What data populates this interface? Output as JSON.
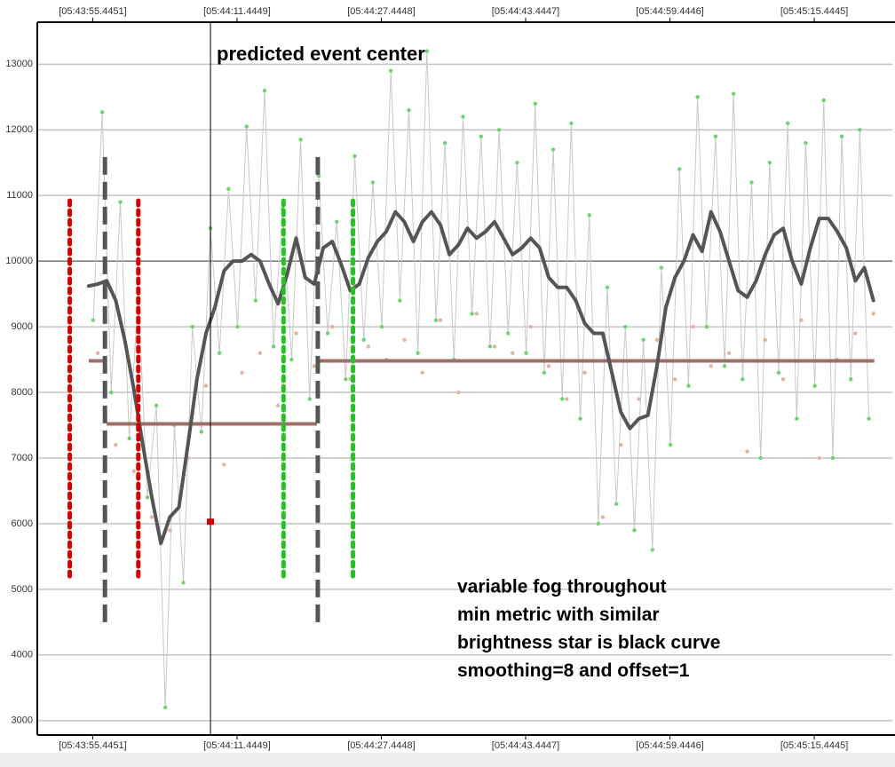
{
  "chart_data": {
    "type": "line",
    "xlim": [
      49.3,
      144.1
    ],
    "ylim": [
      2780,
      13640
    ],
    "yticks": [
      3000,
      4000,
      5000,
      6000,
      7000,
      8000,
      9000,
      10000,
      11000,
      12000,
      13000
    ],
    "xticks": [
      {
        "value": 55.4451,
        "label": "[05:43:55.4451]"
      },
      {
        "value": 71.4449,
        "label": "[05:44:11.4449]"
      },
      {
        "value": 87.4448,
        "label": "[05:44:27.4448]"
      },
      {
        "value": 103.4447,
        "label": "[05:44:43.4447]"
      },
      {
        "value": 119.4446,
        "label": "[05:44:59.4446]"
      },
      {
        "value": 135.4445,
        "label": "[05:45:15.4445]"
      }
    ],
    "grid": true,
    "reference_line": {
      "value": 10000,
      "color": "#7a7a7a"
    },
    "series": [
      {
        "style": "line+points",
        "color": "#c9c9c9",
        "point_color": "#6fd36f",
        "x": [
          55.5,
          56.5,
          57.5,
          58.5,
          59.5,
          60.5,
          61.5,
          62.5,
          63.5,
          64.5,
          65.5,
          66.5,
          67.5,
          68.5,
          69.5,
          70.5,
          71.5,
          72.5,
          73.5,
          74.5,
          75.5,
          76.5,
          77.5,
          78.5,
          79.5,
          80.5,
          81.5,
          82.5,
          83.5,
          84.5,
          85.5,
          86.5,
          87.5,
          88.5,
          89.5,
          90.5,
          91.5,
          92.5,
          93.5,
          94.5,
          95.5,
          96.5,
          97.5,
          98.5,
          99.5,
          100.5,
          101.5,
          102.5,
          103.5,
          104.5,
          105.5,
          106.5,
          107.5,
          108.5,
          109.5,
          110.5,
          111.5,
          112.5,
          113.5,
          114.5,
          115.5,
          116.5,
          117.5,
          118.5,
          119.5,
          120.5,
          121.5,
          122.5,
          123.5,
          124.5,
          125.5,
          126.5,
          127.5,
          128.5,
          129.5,
          130.5,
          131.5,
          132.5,
          133.5,
          134.5,
          135.5,
          136.5,
          137.5,
          138.5,
          139.5,
          140.5,
          141.5
        ],
        "values": [
          9100,
          12270,
          8000,
          10900,
          7300,
          9500,
          6400,
          7800,
          3200,
          7500,
          5100,
          9000,
          7400,
          10500,
          8600,
          11100,
          9000,
          12050,
          9400,
          12600,
          8700,
          10800,
          8500,
          11850,
          7900,
          11300,
          8900,
          10600,
          8200,
          11600,
          8800,
          11200,
          9000,
          12900,
          9400,
          12300,
          8600,
          13200,
          9100,
          11800,
          8500,
          12200,
          9200,
          11900,
          8700,
          12000,
          8900,
          11500,
          8600,
          12400,
          8300,
          11700,
          7900,
          12100,
          7600,
          10700,
          6000,
          9600,
          6300,
          9000,
          5900,
          8800,
          5600,
          9900,
          7200,
          11400,
          8100,
          12500,
          9000,
          11900,
          8400,
          12550,
          8200,
          11200,
          7000,
          11500,
          8300,
          12100,
          7600,
          11800,
          8100,
          12450,
          7000,
          11900,
          8200,
          12000,
          7600
        ]
      },
      {
        "style": "points",
        "color": "#e0b3a3",
        "x": [
          56,
          58,
          60,
          62,
          64,
          66,
          68,
          70,
          72,
          74,
          76,
          78,
          80,
          82,
          84,
          86,
          88,
          90,
          92,
          94,
          96,
          98,
          100,
          102,
          104,
          106,
          108,
          110,
          112,
          114,
          116,
          118,
          120,
          122,
          124,
          126,
          128,
          130,
          132,
          134,
          136,
          138,
          140,
          142
        ],
        "values": [
          8600,
          7200,
          6800,
          6100,
          5900,
          7000,
          8100,
          6900,
          8300,
          8600,
          7800,
          8900,
          8400,
          9000,
          8200,
          8700,
          8500,
          8800,
          8300,
          9100,
          8000,
          9200,
          8700,
          8600,
          9000,
          8400,
          7900,
          8300,
          6100,
          7200,
          7900,
          8800,
          8200,
          9000,
          8400,
          8600,
          7100,
          8800,
          8200,
          9100,
          7000,
          8500,
          8900,
          9200
        ]
      },
      {
        "style": "line",
        "color": "#555555",
        "width": 4,
        "x": [
          55,
          56,
          57,
          58,
          59,
          60,
          61,
          62,
          63,
          64,
          65,
          66,
          67,
          68,
          69,
          70,
          71,
          72,
          73,
          74,
          75,
          76,
          77,
          78,
          79,
          80,
          81,
          82,
          83,
          84,
          85,
          86,
          87,
          88,
          89,
          90,
          91,
          92,
          93,
          94,
          95,
          96,
          97,
          98,
          99,
          100,
          101,
          102,
          103,
          104,
          105,
          106,
          107,
          108,
          109,
          110,
          111,
          112,
          113,
          114,
          115,
          116,
          117,
          118,
          119,
          120,
          121,
          122,
          123,
          124,
          125,
          126,
          127,
          128,
          129,
          130,
          131,
          132,
          133,
          134,
          135,
          136,
          137,
          138,
          139,
          140,
          141,
          142
        ],
        "values": [
          9620,
          9650,
          9700,
          9400,
          8800,
          8050,
          7200,
          6400,
          5700,
          6100,
          6250,
          7200,
          8200,
          8900,
          9300,
          9850,
          10000,
          10000,
          10100,
          10000,
          9650,
          9350,
          9800,
          10350,
          9750,
          9650,
          10200,
          10300,
          9950,
          9550,
          9650,
          10050,
          10300,
          10450,
          10750,
          10600,
          10300,
          10600,
          10750,
          10550,
          10100,
          10250,
          10500,
          10350,
          10450,
          10600,
          10350,
          10100,
          10200,
          10350,
          10200,
          9750,
          9600,
          9600,
          9400,
          9050,
          8900,
          8900,
          8300,
          7700,
          7450,
          7600,
          7650,
          8400,
          9300,
          9750,
          10000,
          10400,
          10150,
          10750,
          10450,
          10000,
          9550,
          9450,
          9700,
          10100,
          10400,
          10500,
          10000,
          9650,
          10200,
          10650,
          10650,
          10450,
          10200,
          9700,
          9900,
          9400
        ]
      }
    ],
    "steps": {
      "color": "#9c6f69",
      "segments": [
        {
          "x": [
            55,
            57
          ],
          "value": 8480
        },
        {
          "x": [
            57,
            80.3
          ],
          "value": 7520
        },
        {
          "x": [
            80.3,
            142.1
          ],
          "value": 8480
        }
      ]
    },
    "markers": [
      {
        "x": 52.9,
        "range": [
          5200,
          10950
        ],
        "color": "#d40000",
        "style": "dotted"
      },
      {
        "x": 60.5,
        "range": [
          5200,
          10950
        ],
        "color": "#d40000",
        "style": "dotted"
      },
      {
        "x": 56.8,
        "range": [
          4500,
          11600
        ],
        "color": "#555555",
        "style": "dashed"
      },
      {
        "x": 80.4,
        "range": [
          4500,
          11600
        ],
        "color": "#555555",
        "style": "dashed"
      },
      {
        "x": 76.6,
        "range": [
          5200,
          10950
        ],
        "color": "#22c322",
        "style": "dotted"
      },
      {
        "x": 84.3,
        "range": [
          5200,
          10950
        ],
        "color": "#22c322",
        "style": "dotted"
      }
    ],
    "event": {
      "x": 68.5,
      "label": "predicted event center",
      "point": {
        "value": 6030,
        "color": "#d00000"
      }
    },
    "notes": [
      "variable fog throughout",
      "min metric with similar",
      "brightness star is black curve",
      "smoothing=8 and offset=1"
    ]
  }
}
